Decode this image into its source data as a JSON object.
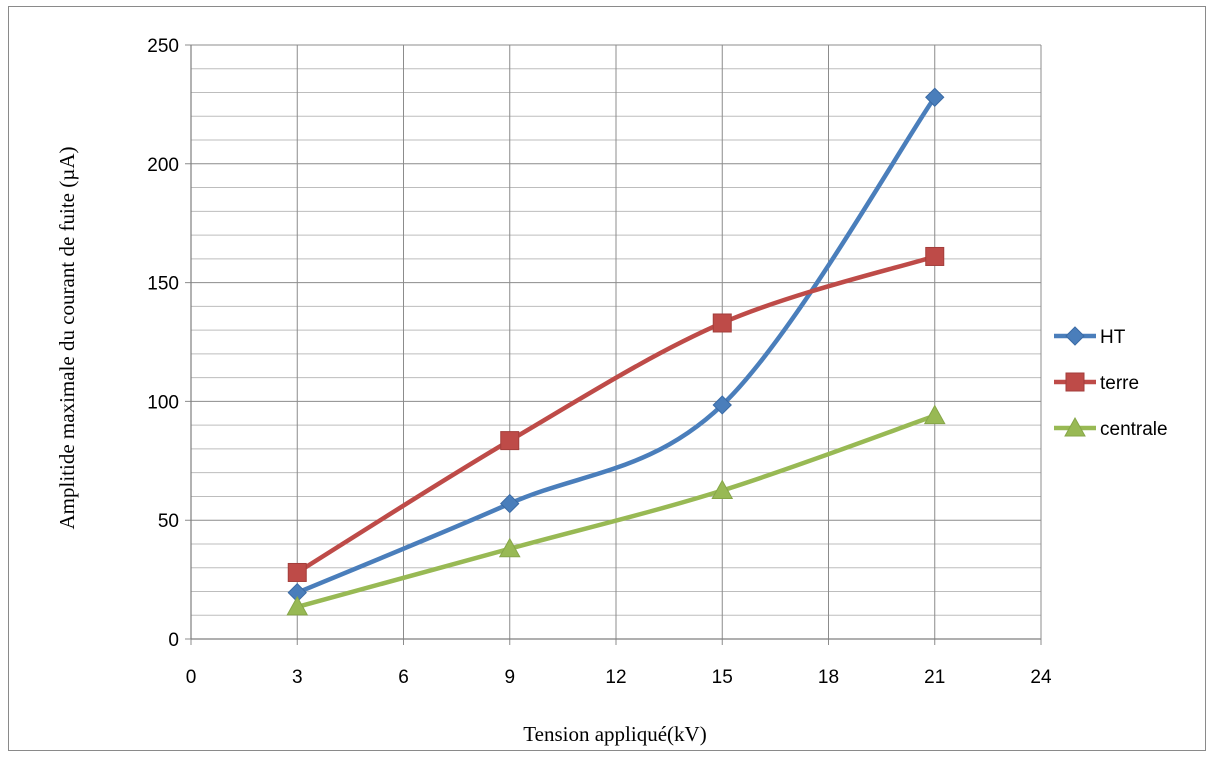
{
  "chart_data": {
    "type": "line",
    "title": "",
    "xlabel": "Tension appliqué(kV)",
    "ylabel": "Amplitide maximale du courant de fuite (µA)",
    "xlim": [
      0,
      24
    ],
    "ylim": [
      0,
      250
    ],
    "x_ticks": [
      "0",
      "3",
      "6",
      "9",
      "12",
      "15",
      "18",
      "21",
      "24"
    ],
    "y_ticks": [
      "0",
      "50",
      "100",
      "150",
      "200",
      "250"
    ],
    "grid": "major and minor",
    "legend_position": "right",
    "smooth": true,
    "x": [
      3,
      9,
      15,
      21
    ],
    "series": [
      {
        "name": "HT",
        "values": [
          19.5,
          57,
          98.5,
          228
        ],
        "color": "#4a7ebb",
        "marker": "diamond"
      },
      {
        "name": "terre",
        "values": [
          28,
          83.5,
          133,
          161
        ],
        "color": "#be4b48",
        "marker": "square"
      },
      {
        "name": "centrale",
        "values": [
          13.5,
          38,
          62.5,
          94
        ],
        "color": "#98b954",
        "marker": "triangle"
      }
    ]
  }
}
